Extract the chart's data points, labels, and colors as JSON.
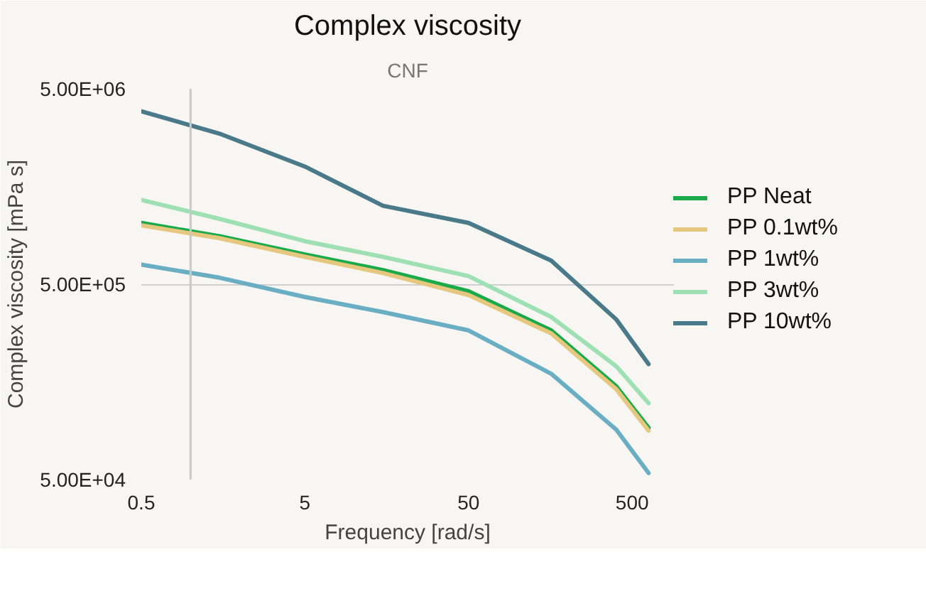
{
  "chart_data": {
    "type": "line",
    "title": "Complex viscosity",
    "subtitle": "CNF",
    "xlabel": "Frequency [rad/s]",
    "ylabel": "Complex viscosity [mPa s]",
    "log": "xy",
    "grid": "y",
    "legend": "right",
    "line_style": "solid",
    "marker": "none",
    "x": [
      0.5,
      1.5,
      5,
      15,
      50,
      160,
      400,
      630
    ],
    "xlim": [
      0.5,
      900
    ],
    "ylim": [
      50000,
      5000000
    ],
    "xticks": [
      0.5,
      5,
      50,
      500
    ],
    "yticks": [
      {
        "value": 50000,
        "label": "5.00E+04"
      },
      {
        "value": 500000,
        "label": "5.00E+05"
      },
      {
        "value": 5000000,
        "label": "5.00E+06"
      }
    ],
    "ref_lines": [
      {
        "axis": "x",
        "value": 1,
        "label": null,
        "color": "#c8c8c8"
      }
    ],
    "series": [
      {
        "name": "PP Neat",
        "color": "#1aaa4a",
        "values": [
          1030000,
          880000,
          710000,
          590000,
          460000,
          290000,
          150000,
          92000
        ]
      },
      {
        "name": "PP 0.1wt%",
        "color": "#e6c77f",
        "values": [
          1000000,
          860000,
          690000,
          570000,
          440000,
          280000,
          145000,
          89000
        ]
      },
      {
        "name": "PP 1wt%",
        "color": "#6aaec4",
        "values": [
          630000,
          540000,
          430000,
          360000,
          290000,
          174000,
          90000,
          54000
        ]
      },
      {
        "name": "PP 3wt%",
        "color": "#9ee0b4",
        "values": [
          1350000,
          1080000,
          830000,
          690000,
          550000,
          340000,
          190000,
          123000
        ]
      },
      {
        "name": "PP 10wt%",
        "color": "#4a7a8a",
        "values": [
          3840000,
          2950000,
          2000000,
          1260000,
          1030000,
          660000,
          330000,
          195000
        ]
      }
    ]
  }
}
